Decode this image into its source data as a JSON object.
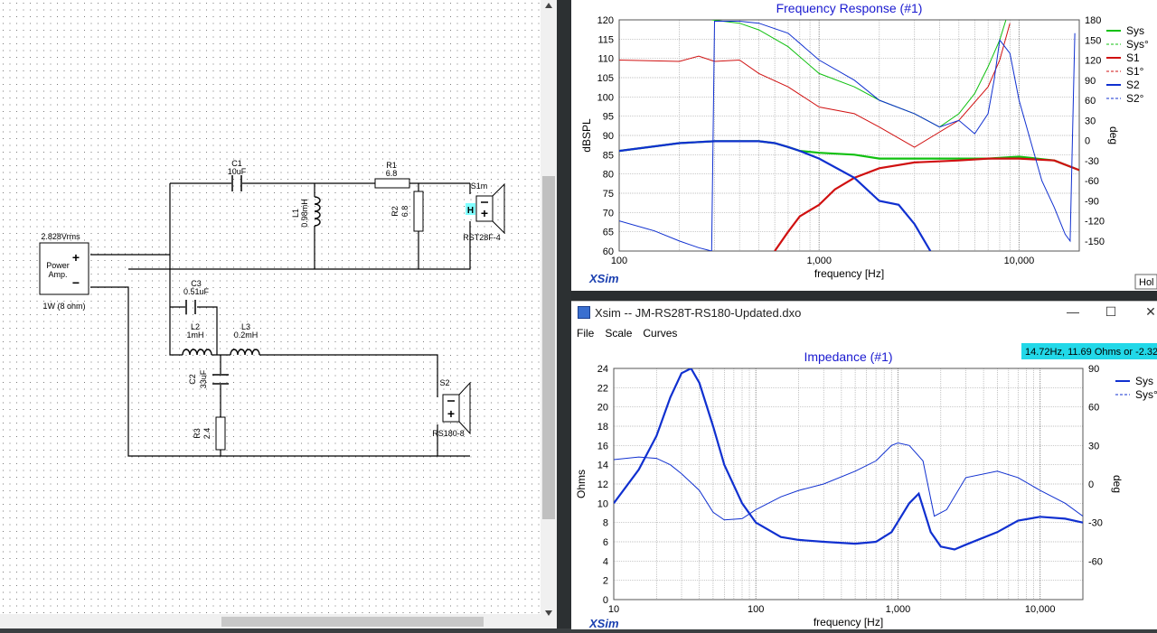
{
  "schematic": {
    "source": {
      "voltage": "2.828Vrms",
      "name_line1": "Power",
      "name_line2": "Amp.",
      "rating": "1W (8 ohm)",
      "plus": "+",
      "minus": "−"
    },
    "components": {
      "c1": {
        "name": "C1",
        "value": "10uF"
      },
      "r1": {
        "name": "R1",
        "value": "6.8"
      },
      "l1": {
        "name": "L1",
        "value": "0.98mH"
      },
      "r2": {
        "name": "R2",
        "value": "6.8"
      },
      "s1": {
        "name": "S1m",
        "model": "RST28F-4",
        "tag": "H"
      },
      "c3": {
        "name": "C3",
        "value": "0.51uF"
      },
      "l2": {
        "name": "L2",
        "value": "1mH"
      },
      "l3": {
        "name": "L3",
        "value": "0.2mH"
      },
      "c2": {
        "name": "C2",
        "value": "33uF"
      },
      "r3": {
        "name": "R3",
        "value": "2.4"
      },
      "s2": {
        "name": "S2",
        "model": "RS180-8"
      }
    }
  },
  "fr_chart": {
    "title": "Frequency Response (#1)",
    "ylabel": "dBSPL",
    "y2label": "deg",
    "xlabel": "frequency [Hz]",
    "yticks": [
      "120",
      "115",
      "110",
      "105",
      "100",
      "95",
      "90",
      "85",
      "80",
      "75",
      "70",
      "65",
      "60"
    ],
    "y2ticks": [
      "180",
      "150",
      "120",
      "90",
      "60",
      "30",
      "0",
      "-30",
      "-60",
      "-90",
      "-120",
      "-150"
    ],
    "xticks": [
      "100",
      "1,000",
      "10,000"
    ],
    "legend": [
      "Sys",
      "Sys°",
      "S1",
      "S1°",
      "S2",
      "S2°"
    ],
    "brand": "XSim",
    "hold_label": "Hol"
  },
  "imp_window": {
    "title": "Xsim -- JM-RS28T-RS180-Updated.dxo",
    "menu": [
      "File",
      "Scale",
      "Curves"
    ],
    "readout": "14.72Hz, 11.69 Ohms or -2.32°"
  },
  "imp_chart": {
    "title": "Impedance (#1)",
    "ylabel": "Ohms",
    "y2label": "deg",
    "xlabel": "frequency [Hz]",
    "yticks": [
      "24",
      "22",
      "20",
      "18",
      "16",
      "14",
      "12",
      "10",
      "8",
      "6",
      "4",
      "2",
      "0"
    ],
    "y2ticks": [
      "90",
      "60",
      "30",
      "0",
      "-30",
      "-60"
    ],
    "xticks": [
      "10",
      "100",
      "1,000",
      "10,000"
    ],
    "legend": [
      "Sys",
      "Sys°"
    ],
    "brand": "XSim"
  },
  "chart_data": [
    {
      "type": "line",
      "title": "Frequency Response (#1)",
      "xlabel": "frequency [Hz]",
      "ylabel": "dBSPL",
      "y2label": "deg",
      "xscale": "log",
      "xlim": [
        100,
        20000
      ],
      "ylim": [
        60,
        120
      ],
      "y2lim": [
        -165,
        180
      ],
      "colors": {
        "Sys": "#10c010",
        "S1": "#d01010",
        "S2": "#1030d0"
      },
      "series": [
        {
          "name": "Sys",
          "axis": "left",
          "x": [
            100,
            200,
            300,
            500,
            600,
            700,
            800,
            1000,
            1500,
            2000,
            3000,
            5000,
            7000,
            10000,
            15000,
            20000
          ],
          "y": [
            86,
            88,
            88.5,
            88.5,
            88,
            87,
            86,
            85.5,
            85,
            84,
            84,
            84,
            84,
            84.5,
            83.5,
            81
          ]
        },
        {
          "name": "S1",
          "axis": "left",
          "x": [
            600,
            700,
            800,
            1000,
            1200,
            1500,
            2000,
            3000,
            5000,
            7000,
            10000,
            15000,
            20000
          ],
          "y": [
            60,
            65,
            69,
            72,
            76,
            79,
            81.5,
            83,
            83.5,
            84,
            84,
            83.5,
            81
          ]
        },
        {
          "name": "S2",
          "axis": "left",
          "x": [
            100,
            200,
            300,
            500,
            600,
            700,
            800,
            1000,
            1500,
            2000,
            2500,
            3000,
            3600
          ],
          "y": [
            86,
            88,
            88.5,
            88.5,
            88,
            87,
            86,
            84,
            79,
            73,
            72,
            67,
            60
          ]
        },
        {
          "name": "Sys°",
          "axis": "right",
          "x": [
            290,
            400,
            500,
            700,
            1000,
            1500,
            2000,
            3000,
            4000,
            5000,
            6000,
            7000,
            8000,
            8600
          ],
          "y": [
            180,
            175,
            165,
            140,
            100,
            80,
            60,
            40,
            20,
            40,
            70,
            110,
            150,
            180
          ]
        },
        {
          "name": "S1°",
          "axis": "right",
          "x": [
            100,
            200,
            250,
            300,
            400,
            500,
            700,
            1000,
            1500,
            2000,
            3000,
            5000,
            7000,
            8000,
            9000
          ],
          "y": [
            120,
            118,
            126,
            118,
            120,
            100,
            80,
            50,
            40,
            20,
            -10,
            30,
            80,
            120,
            175
          ]
        },
        {
          "name": "S2°",
          "axis": "right",
          "x": [
            100,
            150,
            200,
            250,
            290,
            300,
            400,
            500,
            700,
            1000,
            1500,
            2000,
            3000,
            4000,
            5000,
            6000,
            7000,
            7500,
            8000,
            9000,
            10000,
            13000,
            15000,
            17000,
            18000,
            19000
          ],
          "y": [
            -120,
            -135,
            -150,
            -160,
            -165,
            178,
            178,
            175,
            160,
            120,
            90,
            60,
            40,
            20,
            30,
            10,
            40,
            90,
            150,
            130,
            60,
            -60,
            -100,
            -140,
            -150,
            160
          ]
        }
      ]
    },
    {
      "type": "line",
      "title": "Impedance (#1)",
      "xlabel": "frequency [Hz]",
      "ylabel": "Ohms",
      "y2label": "deg",
      "xscale": "log",
      "xlim": [
        10,
        20000
      ],
      "ylim": [
        0,
        24
      ],
      "y2lim": [
        -90,
        90
      ],
      "series": [
        {
          "name": "Sys",
          "axis": "left",
          "x": [
            10,
            15,
            20,
            25,
            30,
            35,
            40,
            50,
            60,
            80,
            100,
            150,
            200,
            300,
            500,
            700,
            900,
            1200,
            1400,
            1700,
            2000,
            2500,
            3000,
            5000,
            7000,
            10000,
            15000,
            20000
          ],
          "y": [
            10,
            13.5,
            17,
            21,
            23.5,
            24,
            22.5,
            18,
            14,
            10,
            8,
            6.5,
            6.2,
            6,
            5.8,
            6,
            7,
            10,
            11,
            7,
            5.5,
            5.2,
            5.7,
            7,
            8.2,
            8.6,
            8.4,
            8
          ]
        },
        {
          "name": "Sys°",
          "axis": "right",
          "x": [
            10,
            15,
            20,
            25,
            30,
            40,
            50,
            60,
            80,
            100,
            150,
            200,
            300,
            500,
            700,
            900,
            1000,
            1200,
            1500,
            1800,
            2200,
            3000,
            5000,
            7000,
            10000,
            15000,
            20000
          ],
          "y": [
            19,
            21,
            20,
            15,
            8,
            -5,
            -22,
            -28,
            -27,
            -20,
            -10,
            -5,
            0,
            10,
            18,
            30,
            32,
            30,
            18,
            -25,
            -20,
            5,
            10,
            5,
            -5,
            -15,
            -25
          ]
        }
      ]
    }
  ]
}
